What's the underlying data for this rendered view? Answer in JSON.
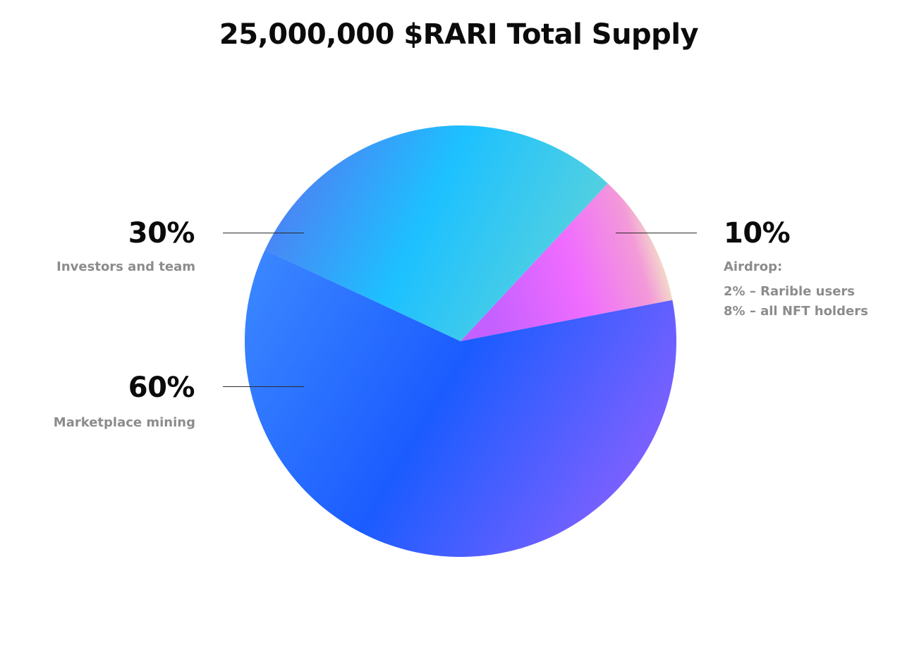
{
  "chart_data": {
    "type": "pie",
    "title": "25,000,000 $RARI Total Supply",
    "slices": [
      {
        "label": "Marketplace mining",
        "value": 60,
        "value_label": "60%",
        "color": "#1f5eff"
      },
      {
        "label": "Investors and team",
        "value": 30,
        "value_label": "30%",
        "color": "#1ec3ff"
      },
      {
        "label": "Airdrop:",
        "value": 10,
        "value_label": "10%",
        "color": "#f06bff",
        "details": [
          "2% – Rarible users",
          "8% – all NFT holders"
        ]
      }
    ]
  }
}
